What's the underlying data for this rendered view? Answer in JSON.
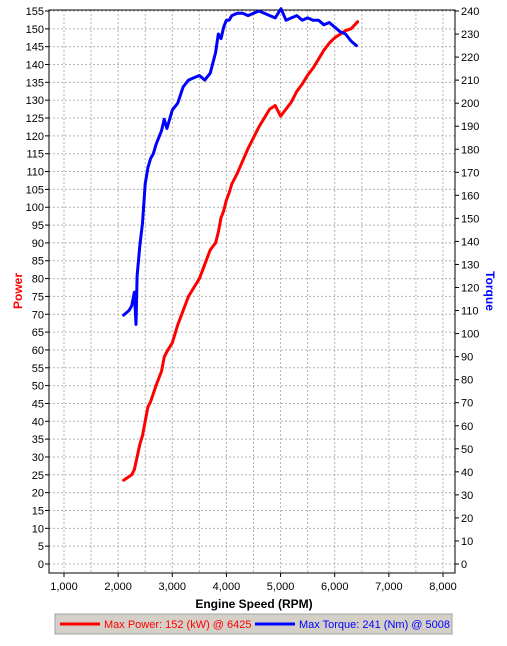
{
  "chart_data": {
    "type": "line",
    "xlabel": "Engine Speed (RPM)",
    "ylabel_left": "Power",
    "ylabel_right": "Torque",
    "xlim": [
      1000,
      8000
    ],
    "ylim_left": [
      0,
      155
    ],
    "ylim_right": [
      0,
      240
    ],
    "grid": true,
    "legend_placement": "bottom",
    "x_ticks": [
      "1,000",
      "2,000",
      "3,000",
      "4,000",
      "5,000",
      "6,000",
      "7,000",
      "8,000"
    ],
    "y_left_ticks": [
      "0",
      "5",
      "10",
      "15",
      "20",
      "25",
      "30",
      "35",
      "40",
      "45",
      "50",
      "55",
      "60",
      "65",
      "70",
      "75",
      "80",
      "85",
      "90",
      "95",
      "100",
      "105",
      "110",
      "115",
      "120",
      "125",
      "130",
      "135",
      "140",
      "145",
      "150",
      "155"
    ],
    "y_right_ticks": [
      "0",
      "10",
      "20",
      "30",
      "40",
      "50",
      "60",
      "70",
      "80",
      "90",
      "100",
      "110",
      "120",
      "130",
      "140",
      "150",
      "160",
      "170",
      "180",
      "190",
      "200",
      "210",
      "220",
      "230",
      "240"
    ],
    "series": [
      {
        "name": "Power",
        "axis": "left",
        "color": "#ff0000",
        "x": [
          2100,
          2200,
          2250,
          2300,
          2350,
          2400,
          2450,
          2500,
          2550,
          2600,
          2700,
          2800,
          2850,
          2900,
          3000,
          3100,
          3200,
          3300,
          3400,
          3500,
          3600,
          3700,
          3800,
          3850,
          3900,
          3950,
          4000,
          4050,
          4100,
          4200,
          4300,
          4400,
          4500,
          4600,
          4700,
          4800,
          4900,
          5000,
          5100,
          5200,
          5300,
          5400,
          5500,
          5600,
          5700,
          5800,
          5900,
          6000,
          6100,
          6200,
          6300,
          6425
        ],
        "values": [
          23.5,
          24.5,
          25,
          26.5,
          30,
          33.5,
          36,
          40,
          44,
          45.5,
          50,
          54,
          58,
          59.5,
          62,
          67,
          71,
          75,
          77.5,
          80,
          84,
          88,
          90,
          93,
          97,
          99,
          102,
          104,
          106.5,
          109.5,
          113,
          116.5,
          119.5,
          122.5,
          125,
          127.5,
          128.5,
          125.5,
          127.5,
          129.5,
          132.5,
          134.5,
          137,
          139,
          141.5,
          144,
          146,
          147.5,
          148.5,
          149.5,
          150,
          152
        ]
      },
      {
        "name": "Torque",
        "axis": "right",
        "color": "#0000ff",
        "x": [
          2100,
          2200,
          2250,
          2300,
          2330,
          2350,
          2400,
          2450,
          2500,
          2550,
          2600,
          2650,
          2700,
          2800,
          2850,
          2900,
          3000,
          3100,
          3200,
          3300,
          3400,
          3500,
          3600,
          3700,
          3800,
          3850,
          3900,
          3950,
          4000,
          4050,
          4100,
          4200,
          4300,
          4400,
          4500,
          4600,
          4700,
          4800,
          4900,
          5008,
          5100,
          5200,
          5300,
          5400,
          5500,
          5600,
          5700,
          5800,
          5900,
          6000,
          6100,
          6200,
          6300,
          6400
        ],
        "values": [
          108,
          110,
          112,
          118,
          104,
          125,
          138,
          148,
          165,
          172,
          176,
          178,
          182,
          188,
          193,
          189,
          197,
          200,
          207,
          210,
          211,
          212,
          210,
          213,
          222,
          230,
          228,
          233,
          236,
          236,
          238,
          239,
          239,
          238,
          239,
          240,
          239,
          238,
          237,
          241,
          236,
          237,
          238,
          236,
          237,
          236,
          236,
          234,
          235,
          233,
          231,
          230,
          227,
          225
        ]
      }
    ]
  },
  "legend": {
    "power_label": "Max Power: 152 (kW) @ 6425",
    "torque_label": "Max Torque: 241 (Nm) @ 5008"
  },
  "colors": {
    "power": "#ff0000",
    "torque": "#0000ff",
    "grid": "#b4b4b4",
    "legend_bg": "#d4d0c8"
  }
}
